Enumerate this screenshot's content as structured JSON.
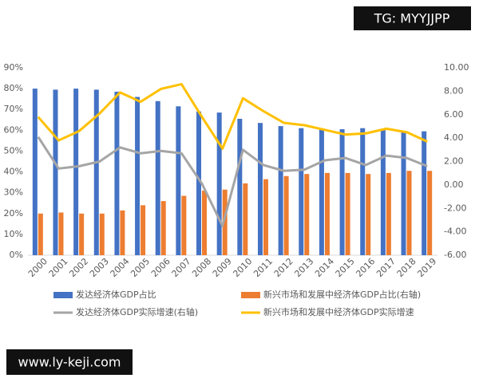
{
  "chart_data": {
    "type": "combo",
    "categories": [
      "2000",
      "2001",
      "2002",
      "2003",
      "2004",
      "2005",
      "2006",
      "2007",
      "2008",
      "2009",
      "2010",
      "2011",
      "2012",
      "2013",
      "2014",
      "2015",
      "2016",
      "2017",
      "2018",
      "2019"
    ],
    "series": [
      {
        "name": "发达经济体GDP占比",
        "type": "bar",
        "color": "#4472c4",
        "values": [
          80,
          79.5,
          80,
          79.5,
          78.5,
          76,
          74,
          71.5,
          69,
          68.5,
          65.5,
          63.5,
          62,
          61,
          60.5,
          60.5,
          61,
          60.5,
          59.5,
          59.5
        ]
      },
      {
        "name": "新兴市场和发展中经济体GDP占比(右轴)",
        "type": "bar",
        "color": "#ed7d31",
        "values": [
          20,
          20.5,
          20,
          20,
          21.5,
          24,
          26,
          28.5,
          31,
          31.5,
          34.5,
          36.5,
          38,
          39,
          39.5,
          39.5,
          39,
          39.5,
          40.5,
          40.5
        ]
      },
      {
        "name": "发达经济体GDP实际增速(右轴)",
        "type": "line",
        "axis": "y2",
        "color": "#a5a5a5",
        "values": [
          4.1,
          1.4,
          1.6,
          2.0,
          3.2,
          2.7,
          2.9,
          2.7,
          0.1,
          -3.5,
          3.0,
          1.7,
          1.2,
          1.3,
          2.1,
          2.3,
          1.7,
          2.5,
          2.3,
          1.6
        ]
      },
      {
        "name": "新兴市场和发展中经济体GDP实际增速",
        "type": "line",
        "axis": "y2",
        "color": "#ffc000",
        "values": [
          5.8,
          3.8,
          4.6,
          6.1,
          7.9,
          7.1,
          8.2,
          8.6,
          5.8,
          3.1,
          7.4,
          6.3,
          5.3,
          5.1,
          4.7,
          4.3,
          4.4,
          4.8,
          4.5,
          3.7
        ]
      }
    ],
    "ylim": [
      0,
      90
    ],
    "yticks": [
      {
        "value": 0,
        "label": "0%"
      },
      {
        "value": 10,
        "label": "10%"
      },
      {
        "value": 20,
        "label": "20%"
      },
      {
        "value": 30,
        "label": "30%"
      },
      {
        "value": 40,
        "label": "40%"
      },
      {
        "value": 50,
        "label": "50%"
      },
      {
        "value": 60,
        "label": "60%"
      },
      {
        "value": 70,
        "label": "70%"
      },
      {
        "value": 80,
        "label": "80%"
      },
      {
        "value": 90,
        "label": "90%"
      }
    ],
    "y2lim": [
      -6,
      10
    ],
    "y2ticks": [
      {
        "value": -6,
        "label": "-6.00"
      },
      {
        "value": -4,
        "label": "-4.00"
      },
      {
        "value": -2,
        "label": "-2.00"
      },
      {
        "value": 0,
        "label": "0.00"
      },
      {
        "value": 2,
        "label": "2.00"
      },
      {
        "value": 4,
        "label": "4.00"
      },
      {
        "value": 6,
        "label": "6.00"
      },
      {
        "value": 8,
        "label": "8.00"
      },
      {
        "value": 10,
        "label": "10.00"
      }
    ]
  },
  "overlays": {
    "top_right": "TG: MYYJJPP",
    "bottom_left": "www.ly-keji.com"
  }
}
